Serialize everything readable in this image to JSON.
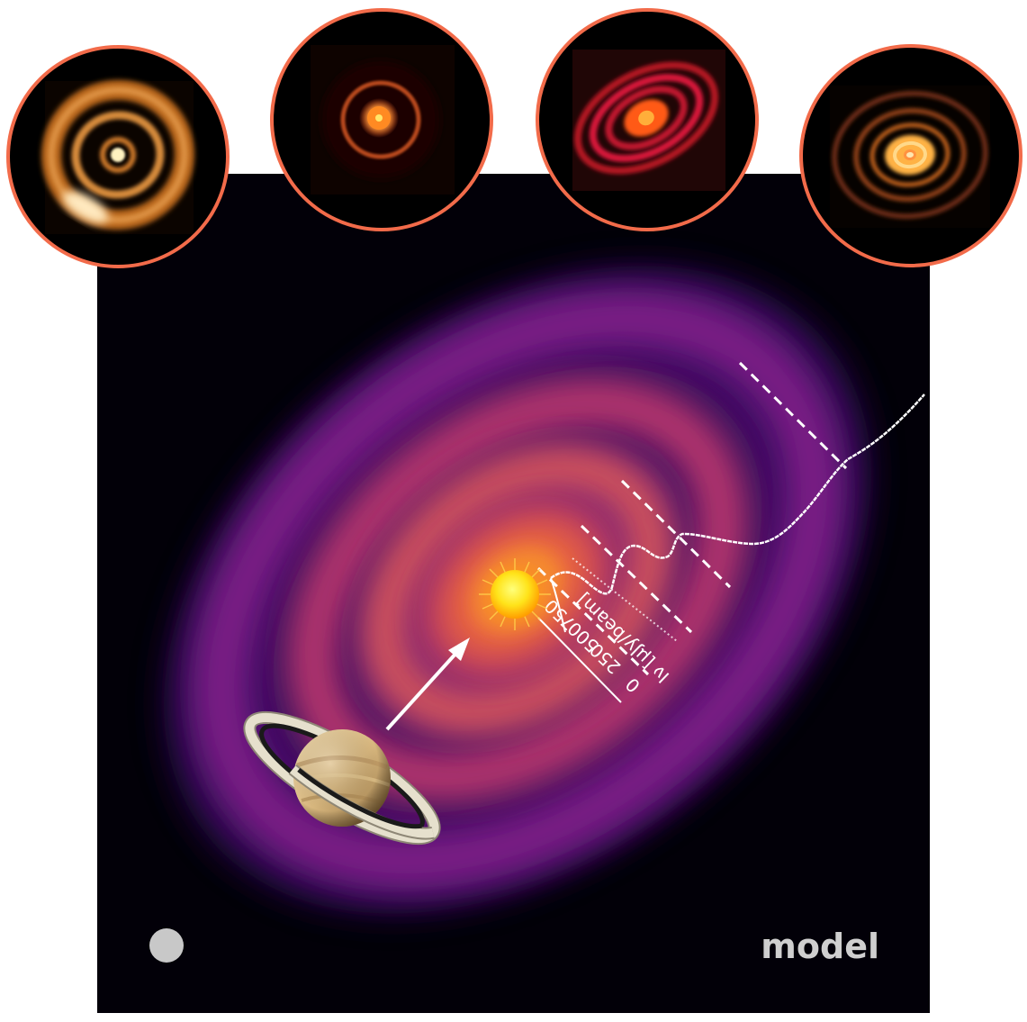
{
  "model_label": "model",
  "axis": {
    "label": "I$_\\nu$ [μJy/beam]",
    "label_display": "Iν [μJy/beam]",
    "ticks": [
      "750",
      "500",
      "250",
      "0"
    ]
  },
  "colors": {
    "inset_border": "#f26b4a",
    "panel_bg": "#020008",
    "beam": "#c8c8c8",
    "profile": "#ffffff"
  },
  "icons": {
    "star": "sun-icon",
    "planet": "saturn-icon",
    "arrow": "arrow-icon",
    "beam": "beam-ellipse-icon"
  },
  "insets": [
    {
      "name": "observed-disk-1"
    },
    {
      "name": "observed-disk-2"
    },
    {
      "name": "observed-disk-3"
    },
    {
      "name": "observed-disk-4"
    }
  ]
}
